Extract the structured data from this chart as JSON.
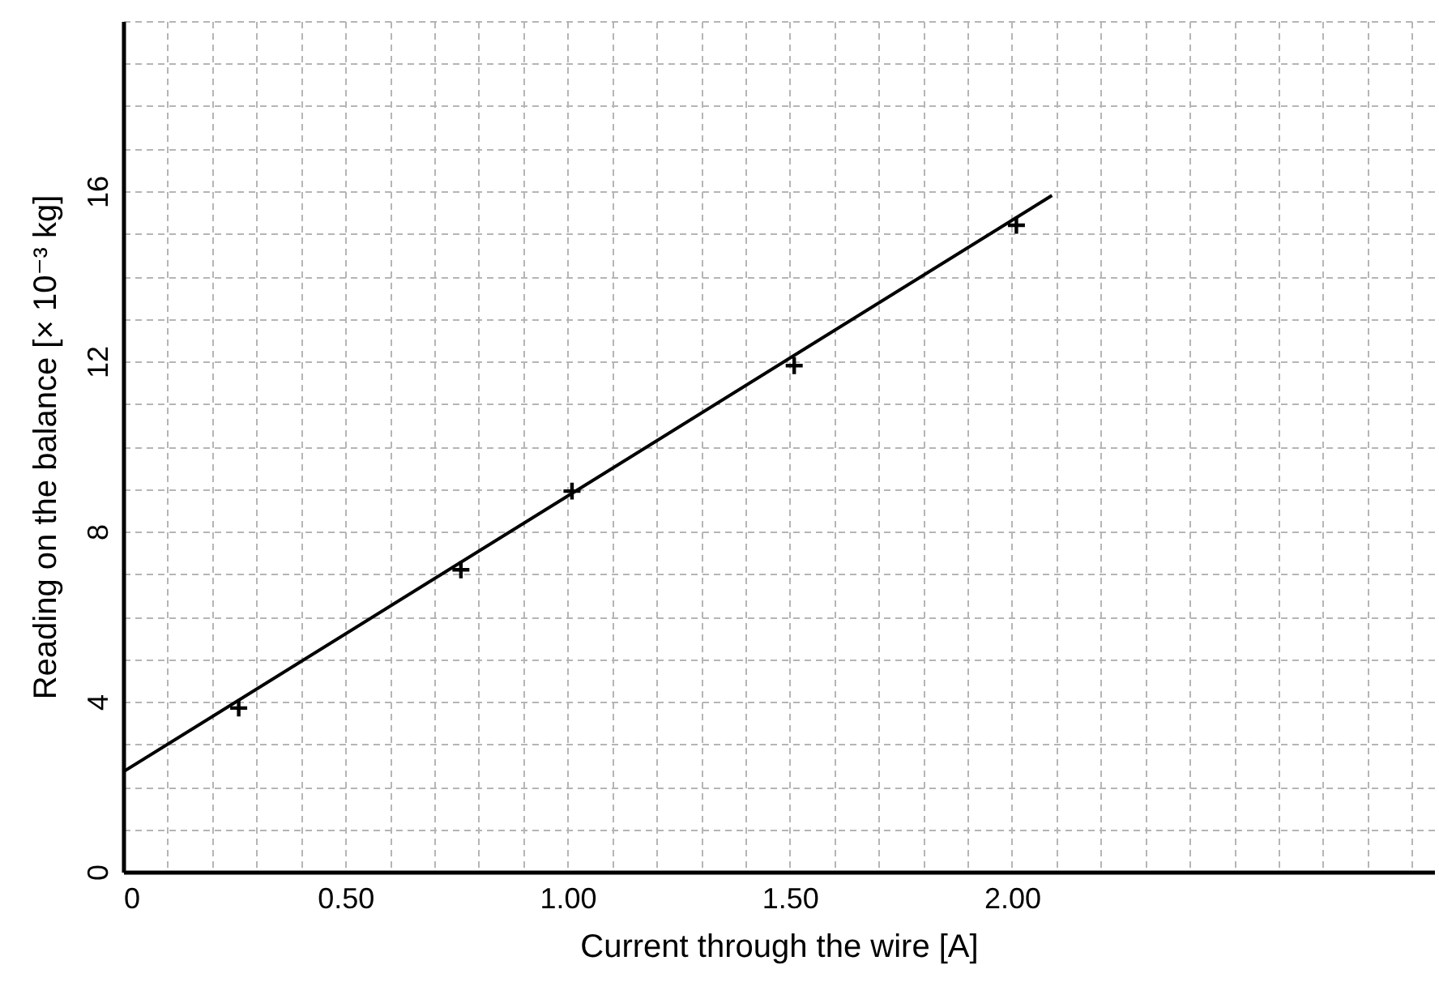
{
  "chart_data": {
    "type": "scatter",
    "xlabel": "Current through the wire [A]",
    "ylabel": "Reading on the balance [× 10⁻³ kg]",
    "xlim": [
      0,
      2.95
    ],
    "ylim": [
      0,
      20
    ],
    "xticks": [
      0,
      {
        "value": 0.1,
        "label": null
      },
      {
        "value": 0.2,
        "label": null
      },
      {
        "value": 0.3,
        "label": null
      },
      {
        "value": 0.4,
        "label": null
      },
      {
        "value": 0.5,
        "label": "0.50"
      },
      {
        "value": 0.6,
        "label": null
      },
      {
        "value": 0.7,
        "label": null
      },
      {
        "value": 0.8,
        "label": null
      },
      {
        "value": 0.9,
        "label": null
      },
      {
        "value": 1,
        "label": "1.00"
      },
      {
        "value": 1.1,
        "label": null
      },
      {
        "value": 1.2,
        "label": null
      },
      {
        "value": 1.3,
        "label": null
      },
      {
        "value": 1.4,
        "label": null
      },
      {
        "value": 1.5,
        "label": "1.50"
      },
      {
        "value": 1.6,
        "label": null
      },
      {
        "value": 1.7,
        "label": null
      },
      {
        "value": 1.8,
        "label": null
      },
      {
        "value": 1.9,
        "label": null
      },
      {
        "value": 2,
        "label": "2.00"
      },
      {
        "value": 2.1,
        "label": null
      },
      {
        "value": 2.2,
        "label": null
      },
      {
        "value": 2.3,
        "label": null
      },
      {
        "value": 2.4,
        "label": null
      },
      {
        "value": 2.5,
        "label": null
      },
      {
        "value": 2.6,
        "label": null
      },
      {
        "value": 2.7,
        "label": null
      },
      {
        "value": 2.8,
        "label": null
      },
      {
        "value": 2.9,
        "label": null
      }
    ],
    "yticks": [
      0,
      {
        "value": 1,
        "label": null
      },
      {
        "value": 2,
        "label": null
      },
      {
        "value": 3,
        "label": null
      },
      4,
      {
        "value": 5,
        "label": null
      },
      {
        "value": 6,
        "label": null
      },
      {
        "value": 7,
        "label": null
      },
      8,
      {
        "value": 9,
        "label": null
      },
      {
        "value": 10,
        "label": null
      },
      {
        "value": 11,
        "label": null
      },
      12,
      {
        "value": 13,
        "label": null
      },
      {
        "value": 14,
        "label": null
      },
      {
        "value": 15,
        "label": null
      },
      16,
      {
        "value": 17,
        "label": null
      },
      {
        "value": 18,
        "label": null
      },
      {
        "value": 19,
        "label": null
      },
      {
        "value": 20,
        "label": null
      }
    ],
    "grid": true,
    "marker": "cross",
    "series": [
      {
        "color": "#000000",
        "x": [
          0.26,
          0.76,
          1.01,
          1.51,
          2.01
        ],
        "values": [
          3.85,
          7.1,
          8.95,
          11.9,
          15.2
        ]
      },
      {
        "type": "line",
        "marker": "none",
        "color": "#000000",
        "x": [
          0,
          2.09
        ],
        "values": [
          2.35,
          15.9
        ]
      }
    ]
  }
}
